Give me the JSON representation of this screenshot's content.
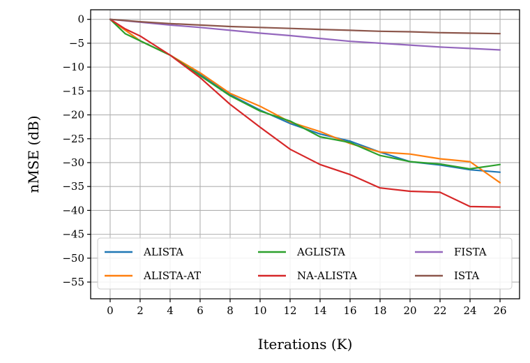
{
  "chart_data": {
    "type": "line",
    "xlabel": "Iterations (K)",
    "ylabel": "nMSE (dB)",
    "xlim": [
      -1.3,
      27.3
    ],
    "ylim": [
      -58.5,
      2.0
    ],
    "xticks": [
      0,
      2,
      4,
      6,
      8,
      10,
      12,
      14,
      16,
      18,
      20,
      22,
      24,
      26
    ],
    "yticks": [
      0,
      -5,
      -10,
      -15,
      -20,
      -25,
      -30,
      -35,
      -40,
      -45,
      -50,
      -55
    ],
    "grid": true,
    "legend": {
      "placement": "lower-center",
      "columns": 3
    },
    "series": [
      {
        "name": "ALISTA",
        "color": "#1f77b4",
        "x": [
          0,
          2,
          4,
          6,
          8,
          10,
          12,
          14,
          16,
          18,
          20,
          22,
          24,
          26
        ],
        "y": [
          0,
          -4.5,
          -7.5,
          -11.5,
          -15.8,
          -19.0,
          -21.8,
          -24.0,
          -25.5,
          -27.8,
          -29.8,
          -30.5,
          -31.5,
          -32.0
        ]
      },
      {
        "name": "ALISTA-AT",
        "color": "#ff7f0e",
        "x": [
          0,
          2,
          4,
          6,
          8,
          10,
          12,
          14,
          16,
          18,
          20,
          22,
          24,
          26
        ],
        "y": [
          0,
          -4.5,
          -7.5,
          -11.2,
          -15.5,
          -18.2,
          -21.5,
          -23.5,
          -26.0,
          -27.8,
          -28.2,
          -29.2,
          -29.8,
          -34.2
        ]
      },
      {
        "name": "AGLISTA",
        "color": "#2ca02c",
        "x": [
          0,
          1,
          2,
          4,
          6,
          8,
          10,
          12,
          14,
          16,
          18,
          20,
          22,
          24,
          26
        ],
        "y": [
          0,
          -3.0,
          -4.5,
          -7.5,
          -11.8,
          -16.0,
          -19.2,
          -21.3,
          -24.6,
          -25.8,
          -28.5,
          -29.8,
          -30.3,
          -31.3,
          -30.4
        ]
      },
      {
        "name": "NA-ALISTA",
        "color": "#d62728",
        "x": [
          0,
          1,
          2,
          4,
          6,
          8,
          10,
          12,
          14,
          16,
          18,
          20,
          22,
          24,
          26
        ],
        "y": [
          0,
          -2.0,
          -3.5,
          -7.5,
          -12.2,
          -17.8,
          -22.6,
          -27.2,
          -30.4,
          -32.5,
          -35.3,
          -36.0,
          -36.2,
          -39.2,
          -39.3
        ]
      },
      {
        "name": "FISTA",
        "color": "#9467bd",
        "x": [
          0,
          2,
          4,
          6,
          8,
          10,
          12,
          14,
          16,
          18,
          20,
          22,
          24,
          26
        ],
        "y": [
          0,
          -0.6,
          -1.2,
          -1.7,
          -2.3,
          -2.9,
          -3.4,
          -4.0,
          -4.6,
          -5.0,
          -5.4,
          -5.8,
          -6.1,
          -6.4
        ]
      },
      {
        "name": "ISTA",
        "color": "#8c564b",
        "x": [
          0,
          2,
          4,
          6,
          8,
          10,
          12,
          14,
          16,
          18,
          20,
          22,
          24,
          26
        ],
        "y": [
          0,
          -0.5,
          -0.9,
          -1.2,
          -1.5,
          -1.7,
          -1.9,
          -2.1,
          -2.3,
          -2.5,
          -2.6,
          -2.8,
          -2.9,
          -3.0
        ]
      }
    ]
  }
}
